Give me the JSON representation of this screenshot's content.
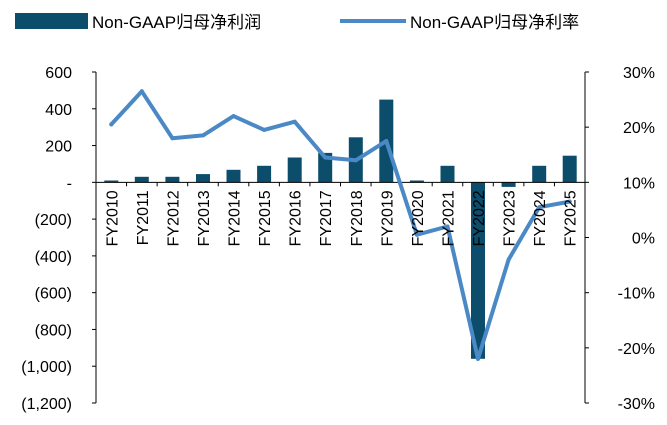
{
  "chart_data": {
    "type": "bar+line",
    "categories": [
      "FY2010",
      "FY2011",
      "FY2012",
      "FY2013",
      "FY2014",
      "FY2015",
      "FY2016",
      "FY2017",
      "FY2018",
      "FY2019",
      "FY2020",
      "FY2021",
      "FY2022",
      "FY2023",
      "FY2024",
      "FY2025"
    ],
    "series": [
      {
        "name": "Non-GAAP归母净利润",
        "type": "bar",
        "axis": "left",
        "color": "#0d4d6c",
        "values": [
          10,
          30,
          30,
          45,
          68,
          90,
          135,
          160,
          245,
          450,
          10,
          90,
          -960,
          -25,
          90,
          145
        ]
      },
      {
        "name": "Non-GAAP归母净利率",
        "type": "line",
        "axis": "right",
        "color": "#4a89c6",
        "values": [
          20.5,
          26.5,
          18.0,
          18.5,
          22.0,
          19.5,
          21.0,
          14.5,
          14.0,
          17.5,
          0.5,
          2.0,
          -22.0,
          -4.0,
          5.5,
          6.5
        ]
      }
    ],
    "left_axis": {
      "ylim": [
        -1200,
        600
      ],
      "ticks": [
        600,
        400,
        200,
        0,
        -200,
        -400,
        -600,
        -800,
        -1000,
        -1200
      ],
      "tick_labels": [
        "600",
        "400",
        "200",
        "-",
        "(200)",
        "(400)",
        "(600)",
        "(800)",
        "(1,000)",
        "(1,200)"
      ]
    },
    "right_axis": {
      "ylim": [
        -30,
        30
      ],
      "ticks": [
        30,
        20,
        10,
        0,
        -10,
        -20,
        -30
      ],
      "tick_labels": [
        "30%",
        "20%",
        "10%",
        "0%",
        "-10%",
        "-20%",
        "-30%"
      ]
    },
    "legend": {
      "position": "top",
      "items": [
        {
          "label": "Non-GAAP归母净利润",
          "symbol": "bar"
        },
        {
          "label": "Non-GAAP归母净利率",
          "symbol": "line"
        }
      ]
    },
    "grid": false
  }
}
